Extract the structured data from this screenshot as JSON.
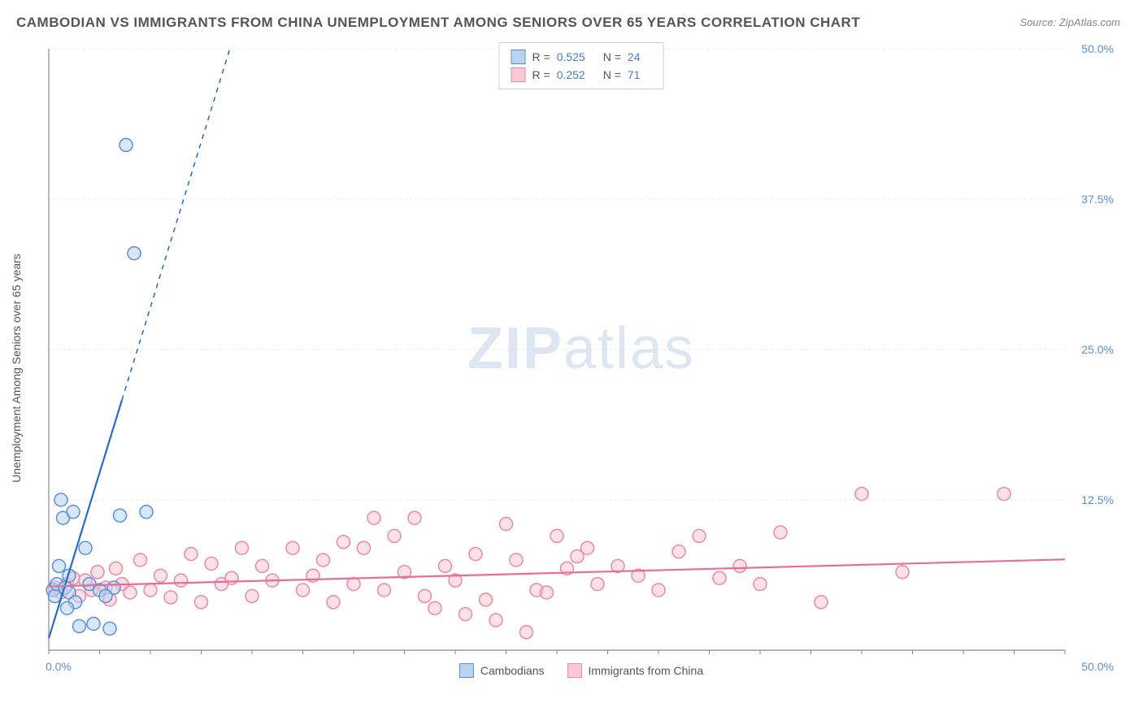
{
  "title": "CAMBODIAN VS IMMIGRANTS FROM CHINA UNEMPLOYMENT AMONG SENIORS OVER 65 YEARS CORRELATION CHART",
  "source": "Source: ZipAtlas.com",
  "y_axis_label": "Unemployment Among Seniors over 65 years",
  "watermark_bold": "ZIP",
  "watermark_light": "atlas",
  "chart": {
    "type": "scatter",
    "xlim": [
      0,
      50
    ],
    "ylim": [
      0,
      50
    ],
    "x_tick_labels": {
      "0": "0.0%",
      "50": "50.0%"
    },
    "y_ticks": [
      12.5,
      25.0,
      37.5,
      50.0
    ],
    "y_tick_labels": [
      "12.5%",
      "25.0%",
      "37.5%",
      "50.0%"
    ],
    "grid_color": "#e8e8e8",
    "axis_color": "#888888",
    "background_color": "#ffffff",
    "marker_radius": 8,
    "marker_stroke_width": 1.5,
    "series": [
      {
        "name": "Cambodians",
        "fill_color": "#b8d4f0",
        "stroke_color": "#5a8fd8",
        "fill_opacity": 0.55,
        "R": "0.525",
        "N": "24",
        "trend": {
          "slope": 5.5,
          "intercept": 1.0,
          "x_solid_max": 3.6,
          "x_dash_max": 9.5,
          "color": "#2a6bc4",
          "width": 2.2
        },
        "points": [
          [
            0.2,
            5.0
          ],
          [
            0.3,
            4.5
          ],
          [
            0.4,
            5.5
          ],
          [
            0.5,
            7.0
          ],
          [
            0.6,
            12.5
          ],
          [
            0.7,
            11.0
          ],
          [
            0.8,
            5.2
          ],
          [
            1.0,
            4.8
          ],
          [
            1.0,
            6.2
          ],
          [
            1.2,
            11.5
          ],
          [
            1.3,
            4.0
          ],
          [
            1.5,
            2.0
          ],
          [
            1.8,
            8.5
          ],
          [
            2.0,
            5.5
          ],
          [
            2.2,
            2.2
          ],
          [
            2.5,
            5.0
          ],
          [
            3.0,
            1.8
          ],
          [
            3.2,
            5.2
          ],
          [
            3.5,
            11.2
          ],
          [
            4.8,
            11.5
          ],
          [
            2.8,
            4.5
          ],
          [
            4.2,
            33.0
          ],
          [
            3.8,
            42.0
          ],
          [
            0.9,
            3.5
          ]
        ]
      },
      {
        "name": "Immigrants from China",
        "fill_color": "#f9c9d4",
        "stroke_color": "#e98aa5",
        "fill_opacity": 0.55,
        "R": "0.252",
        "N": "71",
        "trend": {
          "slope": 0.045,
          "intercept": 5.3,
          "x_solid_max": 50,
          "x_dash_max": 50,
          "color": "#e96d95",
          "width": 2.2
        },
        "points": [
          [
            0.3,
            5.2
          ],
          [
            0.6,
            4.8
          ],
          [
            0.9,
            5.5
          ],
          [
            1.2,
            6.0
          ],
          [
            1.5,
            4.5
          ],
          [
            1.8,
            5.8
          ],
          [
            2.1,
            5.0
          ],
          [
            2.4,
            6.5
          ],
          [
            2.8,
            5.2
          ],
          [
            3.0,
            4.2
          ],
          [
            3.3,
            6.8
          ],
          [
            3.6,
            5.5
          ],
          [
            4.0,
            4.8
          ],
          [
            4.5,
            7.5
          ],
          [
            5.0,
            5.0
          ],
          [
            5.5,
            6.2
          ],
          [
            6.0,
            4.4
          ],
          [
            6.5,
            5.8
          ],
          [
            7.0,
            8.0
          ],
          [
            7.5,
            4.0
          ],
          [
            8.0,
            7.2
          ],
          [
            8.5,
            5.5
          ],
          [
            9.0,
            6.0
          ],
          [
            9.5,
            8.5
          ],
          [
            10.0,
            4.5
          ],
          [
            10.5,
            7.0
          ],
          [
            11.0,
            5.8
          ],
          [
            12.0,
            8.5
          ],
          [
            12.5,
            5.0
          ],
          [
            13.0,
            6.2
          ],
          [
            13.5,
            7.5
          ],
          [
            14.0,
            4.0
          ],
          [
            14.5,
            9.0
          ],
          [
            15.0,
            5.5
          ],
          [
            15.5,
            8.5
          ],
          [
            16.0,
            11.0
          ],
          [
            16.5,
            5.0
          ],
          [
            17.0,
            9.5
          ],
          [
            17.5,
            6.5
          ],
          [
            18.0,
            11.0
          ],
          [
            18.5,
            4.5
          ],
          [
            19.0,
            3.5
          ],
          [
            19.5,
            7.0
          ],
          [
            20.0,
            5.8
          ],
          [
            20.5,
            3.0
          ],
          [
            21.0,
            8.0
          ],
          [
            21.5,
            4.2
          ],
          [
            22.0,
            2.5
          ],
          [
            22.5,
            10.5
          ],
          [
            23.0,
            7.5
          ],
          [
            23.5,
            1.5
          ],
          [
            24.0,
            5.0
          ],
          [
            24.5,
            4.8
          ],
          [
            25.0,
            9.5
          ],
          [
            25.5,
            6.8
          ],
          [
            26.0,
            7.8
          ],
          [
            26.5,
            8.5
          ],
          [
            27.0,
            5.5
          ],
          [
            28.0,
            7.0
          ],
          [
            29.0,
            6.2
          ],
          [
            30.0,
            5.0
          ],
          [
            31.0,
            8.2
          ],
          [
            32.0,
            9.5
          ],
          [
            33.0,
            6.0
          ],
          [
            34.0,
            7.0
          ],
          [
            35.0,
            5.5
          ],
          [
            36.0,
            9.8
          ],
          [
            38.0,
            4.0
          ],
          [
            40.0,
            13.0
          ],
          [
            42.0,
            6.5
          ],
          [
            47.0,
            13.0
          ]
        ]
      }
    ]
  },
  "stats_labels": {
    "R": "R =",
    "N": "N ="
  },
  "legend_series1": "Cambodians",
  "legend_series2": "Immigrants from China"
}
